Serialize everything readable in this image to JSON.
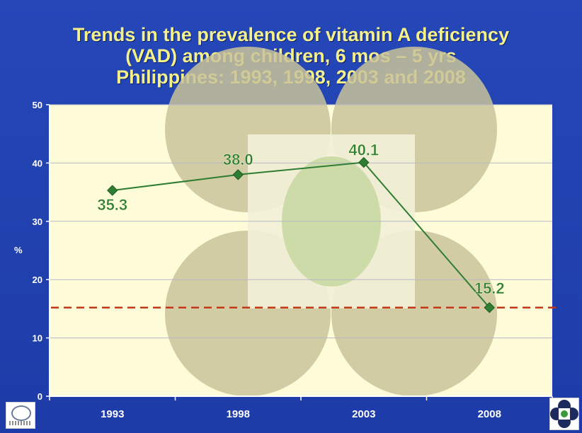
{
  "slide": {
    "title_lines": [
      "Trends in the prevalence of vitamin A deficiency",
      "(VAD) among children, 6 mos – 5 yrs",
      "Philippines: 1993, 1998, 2003 and 2008"
    ]
  },
  "chart_data": {
    "type": "line",
    "categories": [
      "1993",
      "1998",
      "2003",
      "2008"
    ],
    "series": [
      {
        "values": [
          35.3,
          38.0,
          40.1,
          15.2
        ],
        "labels": [
          "35.3",
          "38.0",
          "40.1",
          "15.2"
        ],
        "color": "#2e7d32"
      }
    ],
    "reference_line": {
      "value": 15.2,
      "style": "dashed",
      "color": "#c0391b"
    },
    "ylabel": "%",
    "ylim": [
      0,
      50
    ],
    "yticks": [
      "0",
      "10",
      "20",
      "30",
      "40",
      "50"
    ],
    "grid": true,
    "plot_background": "#fdfbd8"
  },
  "colors": {
    "background": "#1f3fae",
    "title": "#f4f08a",
    "axis_text": "#ffffff"
  },
  "logos": {
    "left": "institution-seal-icon",
    "right": "fnri-logo-icon"
  }
}
